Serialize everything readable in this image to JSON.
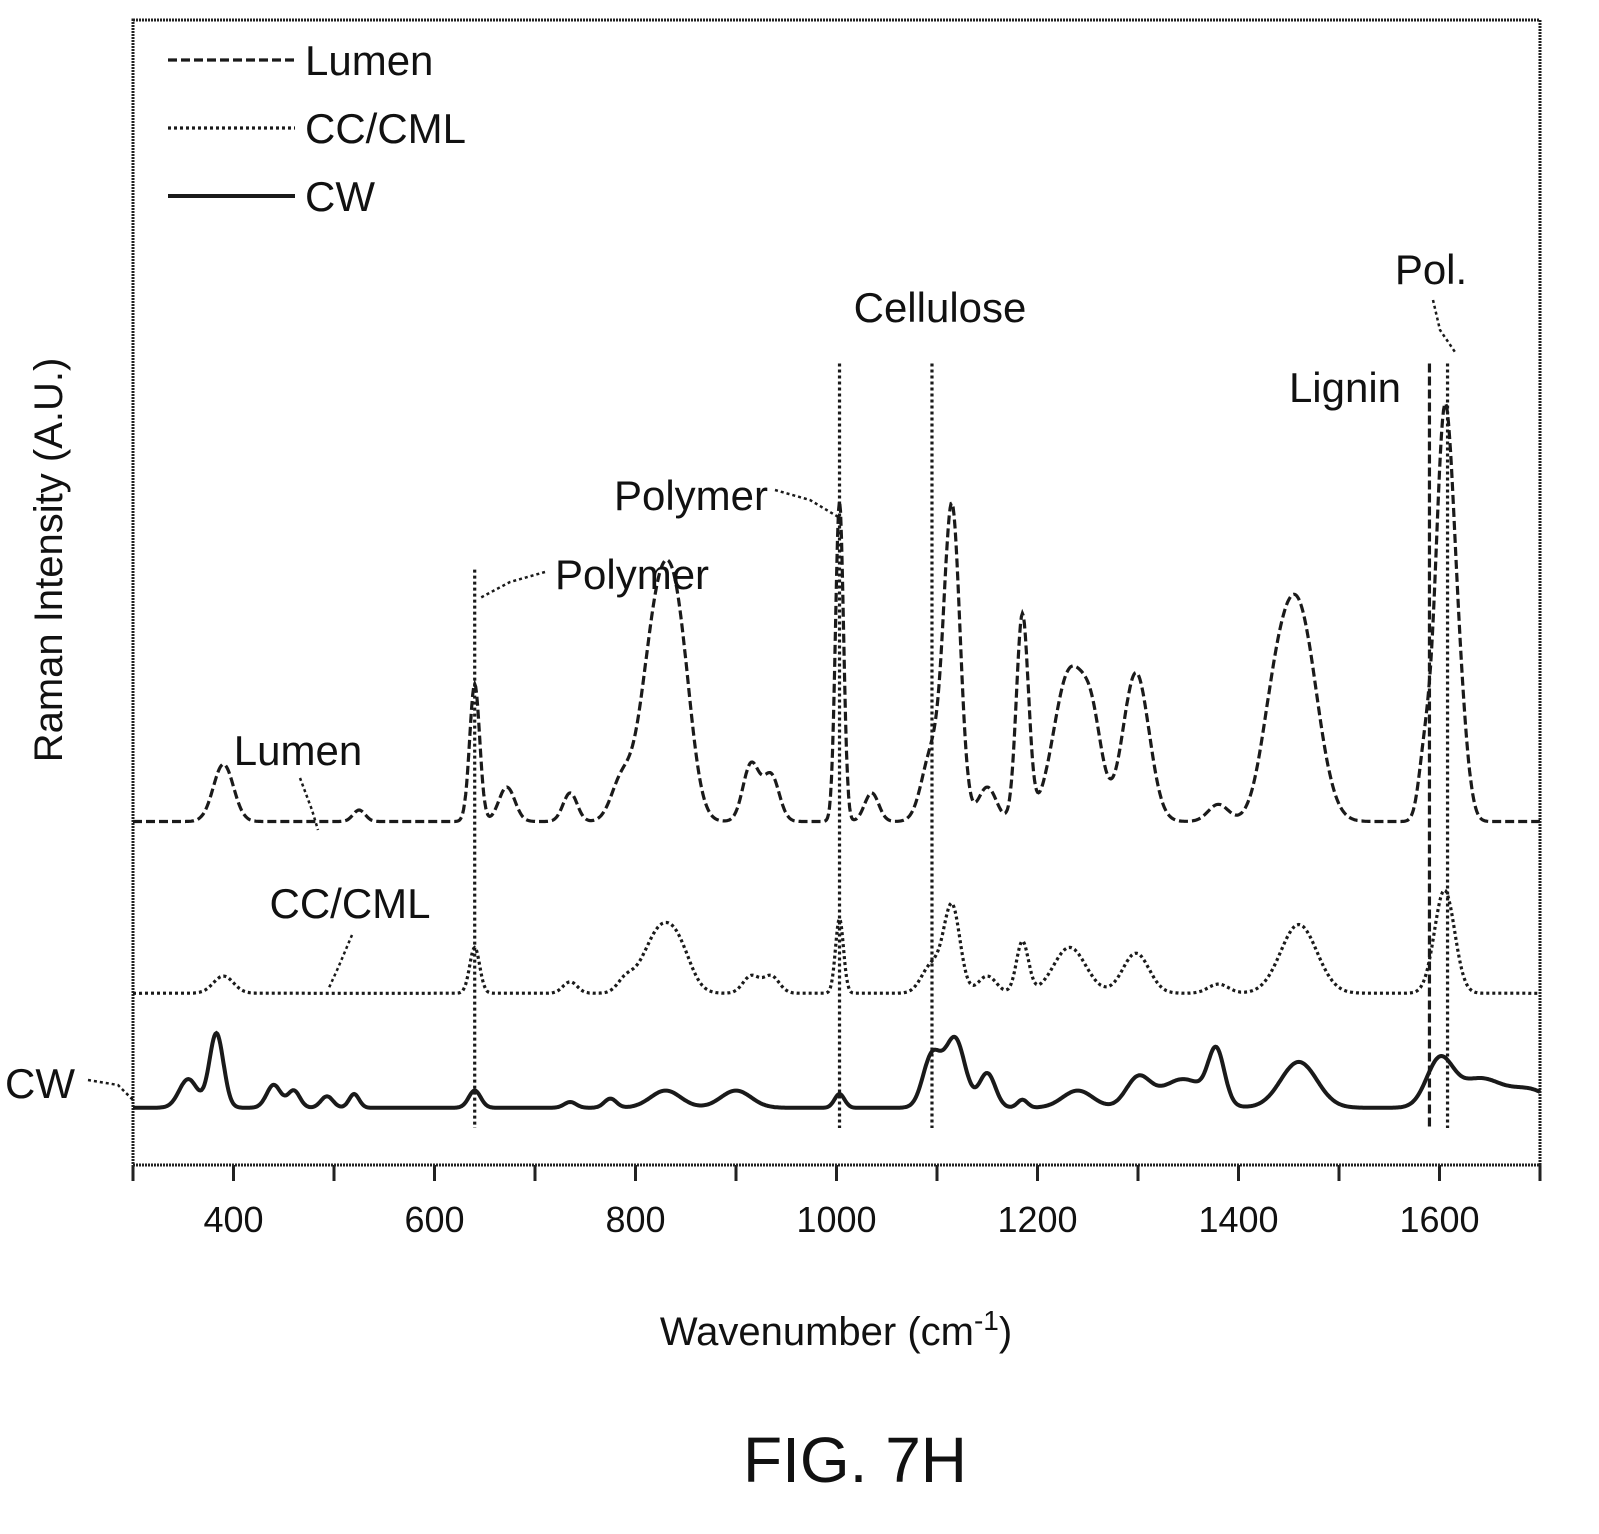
{
  "chart_data": {
    "type": "line",
    "title": "",
    "xlabel": "Wavenumber (cm",
    "xlabel_sup": "-1",
    "xlabel_end": ")",
    "ylabel": "Raman Intensity (A.U.)",
    "xlim": [
      300,
      1700
    ],
    "ylim": [
      0,
      100
    ],
    "x_ticks": [
      400,
      600,
      800,
      1000,
      1200,
      1400,
      1600
    ],
    "x_tick_labels": [
      "400",
      "600",
      "800",
      "1000",
      "1200",
      "1400",
      "1600"
    ],
    "grid": false,
    "legend_position": "top-left",
    "series": [
      {
        "name": "Lumen",
        "style": "dashed",
        "baseline": 30,
        "peaks": [
          [
            390,
            5,
            10
          ],
          [
            525,
            1,
            6
          ],
          [
            640,
            12,
            5
          ],
          [
            672,
            3,
            8
          ],
          [
            735,
            2.5,
            7
          ],
          [
            785,
            3,
            10
          ],
          [
            825,
            20,
            17
          ],
          [
            845,
            8,
            12
          ],
          [
            915,
            5,
            8
          ],
          [
            935,
            4,
            8
          ],
          [
            1003,
            28,
            4
          ],
          [
            1035,
            2.5,
            7
          ],
          [
            1095,
            6,
            10
          ],
          [
            1115,
            27,
            8
          ],
          [
            1150,
            3,
            9
          ],
          [
            1185,
            18,
            6
          ],
          [
            1232,
            13,
            16
          ],
          [
            1255,
            6,
            10
          ],
          [
            1298,
            13,
            13
          ],
          [
            1380,
            1.5,
            10
          ],
          [
            1435,
            7,
            14
          ],
          [
            1460,
            18,
            18
          ],
          [
            1585,
            5,
            6
          ],
          [
            1605,
            35,
            9
          ],
          [
            1620,
            8,
            8
          ]
        ]
      },
      {
        "name": "CC/CML",
        "style": "dotted",
        "baseline": 15,
        "peaks": [
          [
            390,
            1.5,
            10
          ],
          [
            640,
            4,
            5
          ],
          [
            735,
            1,
            7
          ],
          [
            790,
            1,
            8
          ],
          [
            825,
            5.5,
            17
          ],
          [
            845,
            2,
            12
          ],
          [
            915,
            1.5,
            8
          ],
          [
            935,
            1.5,
            8
          ],
          [
            1003,
            6.5,
            4
          ],
          [
            1095,
            2.5,
            10
          ],
          [
            1115,
            7.5,
            8
          ],
          [
            1150,
            1.5,
            9
          ],
          [
            1185,
            4.5,
            6
          ],
          [
            1232,
            4,
            16
          ],
          [
            1298,
            3.5,
            13
          ],
          [
            1380,
            0.8,
            10
          ],
          [
            1460,
            6,
            18
          ],
          [
            1605,
            9,
            10
          ]
        ]
      },
      {
        "name": "CW",
        "style": "solid",
        "baseline": 5,
        "peaks": [
          [
            355,
            2.5,
            9
          ],
          [
            383,
            6.5,
            7
          ],
          [
            440,
            2,
            7
          ],
          [
            460,
            1.5,
            6
          ],
          [
            493,
            1,
            6
          ],
          [
            520,
            1.2,
            5
          ],
          [
            640,
            1.5,
            6
          ],
          [
            735,
            0.5,
            6
          ],
          [
            775,
            0.8,
            6
          ],
          [
            830,
            1.5,
            15
          ],
          [
            900,
            1.5,
            15
          ],
          [
            1003,
            1.2,
            5
          ],
          [
            1095,
            4.5,
            9
          ],
          [
            1118,
            6,
            10
          ],
          [
            1150,
            3,
            8
          ],
          [
            1185,
            0.7,
            5
          ],
          [
            1240,
            1.5,
            15
          ],
          [
            1300,
            2.5,
            12
          ],
          [
            1345,
            2.5,
            22
          ],
          [
            1378,
            4.5,
            8
          ],
          [
            1460,
            4,
            18
          ],
          [
            1600,
            4,
            13
          ],
          [
            1640,
            2.5,
            22
          ],
          [
            1690,
            1.5,
            20
          ]
        ]
      }
    ],
    "annotations": [
      {
        "text": "Lumen",
        "x": 462,
        "y": 37
      },
      {
        "text": "CC/CML",
        "x": 504,
        "y": 21
      },
      {
        "text": "CW",
        "x": 274,
        "y": 7
      },
      {
        "text": "Polymer",
        "x": 640,
        "y": 52
      },
      {
        "text": "Polymer",
        "x": 1003,
        "y": 59
      },
      {
        "text": "Cellulose",
        "x": 1095,
        "y": 73
      },
      {
        "text": "Lignin",
        "x": 1595,
        "y": 66
      },
      {
        "text": "Pol.",
        "x": 1608,
        "y": 77
      }
    ],
    "reference_lines": [
      {
        "x": 640,
        "style": "dotted",
        "y_top": 52
      },
      {
        "x": 1003,
        "style": "dotted",
        "y_top": 70
      },
      {
        "x": 1095,
        "style": "dotted",
        "y_top": 70
      },
      {
        "x": 1590,
        "style": "dashed",
        "y_top": 70
      },
      {
        "x": 1608,
        "style": "dotted",
        "y_top": 70
      }
    ]
  },
  "figure_label": "FIG. 7H"
}
